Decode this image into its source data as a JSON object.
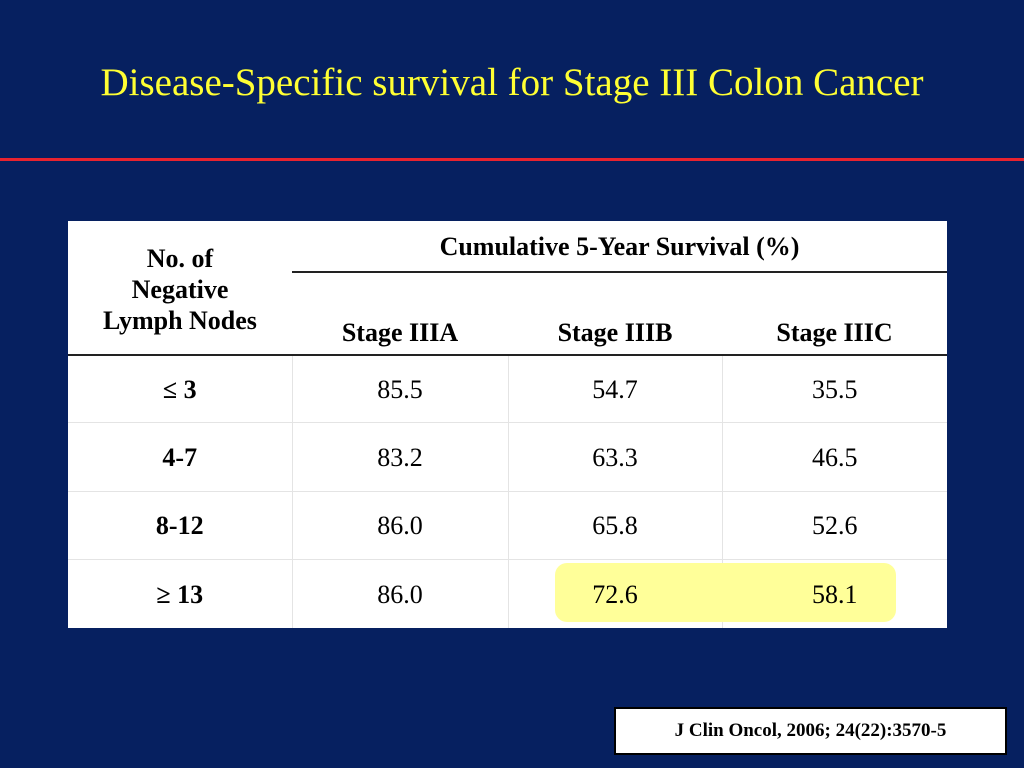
{
  "slide": {
    "title": "Disease-Specific survival for Stage III Colon Cancer",
    "citation": "J Clin Oncol, 2006; 24(22):3570-5"
  },
  "table": {
    "row_header": [
      "No. of",
      "Negative",
      "Lymph Nodes"
    ],
    "group_header": "Cumulative 5-Year Survival (%)",
    "columns": [
      "Stage IIIA",
      "Stage IIIB",
      "Stage IIIC"
    ],
    "rows": [
      {
        "label": "≤ 3",
        "values": [
          "85.5",
          "54.7",
          "35.5"
        ]
      },
      {
        "label": "4-7",
        "values": [
          "83.2",
          "63.3",
          "46.5"
        ]
      },
      {
        "label": "8-12",
        "values": [
          "86.0",
          "65.8",
          "52.6"
        ]
      },
      {
        "label": "≥ 13",
        "values": [
          "86.0",
          "72.6",
          "58.1"
        ]
      }
    ],
    "highlighted_cells": [
      "rows.3.values.1",
      "rows.3.values.2"
    ]
  },
  "colors": {
    "background": "#062060",
    "title": "#ffff33",
    "rule": "#e8232f",
    "highlight": "#ffff99"
  }
}
